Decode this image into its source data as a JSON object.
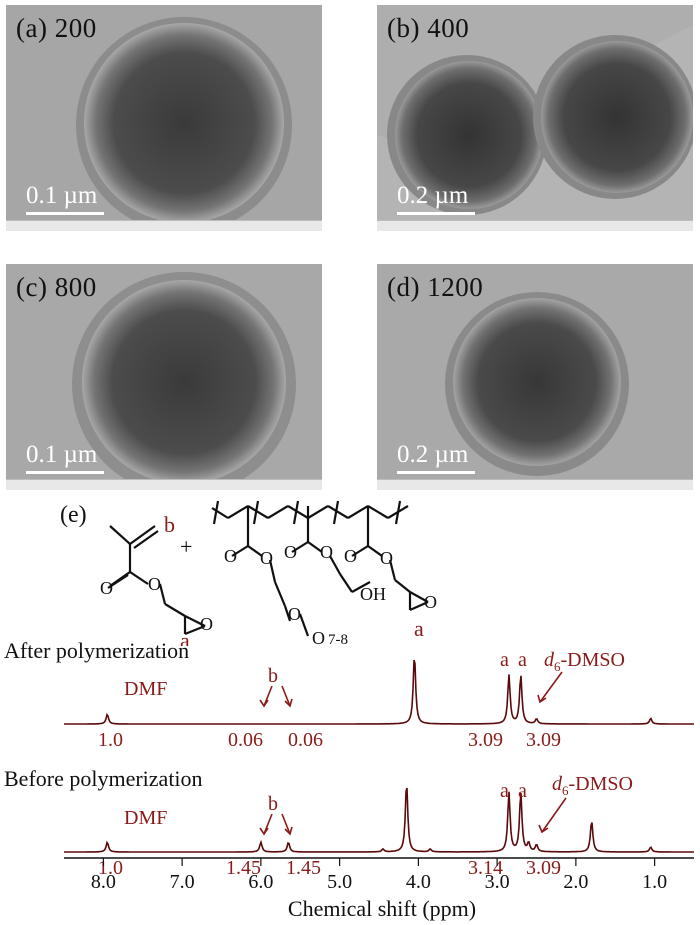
{
  "tem_panels": [
    {
      "label": "(a) 200",
      "scale": "0.1 µm"
    },
    {
      "label": "(b) 400",
      "scale": "0.2 µm"
    },
    {
      "label": "(c) 800",
      "scale": "0.1 µm"
    },
    {
      "label": "(d) 1200",
      "scale": "0.2 µm"
    }
  ],
  "scheme": {
    "label": "(e)",
    "plus": "+",
    "atom_O": "O",
    "atom_OH": "OH",
    "peak_b": "b",
    "peak_a": "a",
    "repeat": "7-8"
  },
  "chart_data": {
    "type": "line",
    "title": "",
    "xlabel": "Chemical shift (ppm)",
    "xlim": [
      8.5,
      0.5
    ],
    "xticks": [
      "8.0",
      "7.0",
      "6.0",
      "5.0",
      "4.0",
      "3.0",
      "2.0",
      "1.0"
    ],
    "series": [
      {
        "name": "After polymerization",
        "peaks": [
          {
            "ppm": 7.95,
            "h": 0.14
          },
          {
            "ppm": 4.05,
            "h": 1.0
          },
          {
            "ppm": 2.85,
            "h": 0.7
          },
          {
            "ppm": 2.7,
            "h": 0.7
          },
          {
            "ppm": 2.5,
            "h": 0.07
          },
          {
            "ppm": 1.05,
            "h": 0.08
          }
        ],
        "annotations": {
          "dmf": "DMF",
          "b": "b",
          "a1": "a",
          "a2": "a",
          "dmso_italic": "d",
          "dmso_sub": "6",
          "dmso_rest": "-DMSO"
        },
        "integrals": [
          "1.0",
          "0.06",
          "0.06",
          "3.09",
          "3.09"
        ]
      },
      {
        "name": "Before polymerization",
        "peaks": [
          {
            "ppm": 7.95,
            "h": 0.14
          },
          {
            "ppm": 6.0,
            "h": 0.14
          },
          {
            "ppm": 5.65,
            "h": 0.14
          },
          {
            "ppm": 4.45,
            "h": 0.04
          },
          {
            "ppm": 4.15,
            "h": 1.0
          },
          {
            "ppm": 3.85,
            "h": 0.04
          },
          {
            "ppm": 2.85,
            "h": 0.85
          },
          {
            "ppm": 2.7,
            "h": 0.85
          },
          {
            "ppm": 2.6,
            "h": 0.12
          },
          {
            "ppm": 2.5,
            "h": 0.1
          },
          {
            "ppm": 1.8,
            "h": 0.45
          },
          {
            "ppm": 1.05,
            "h": 0.07
          }
        ],
        "annotations": {
          "dmf": "DMF",
          "b": "b",
          "a1": "a",
          "a2": "a",
          "dmso_italic": "d",
          "dmso_sub": "6",
          "dmso_rest": "-DMSO"
        },
        "integrals": [
          "1.0",
          "1.45",
          "1.45",
          "3.14",
          "3.09"
        ]
      }
    ],
    "colors": {
      "trace": "#5a0a0a",
      "annotation": "#8b1a1a"
    }
  }
}
